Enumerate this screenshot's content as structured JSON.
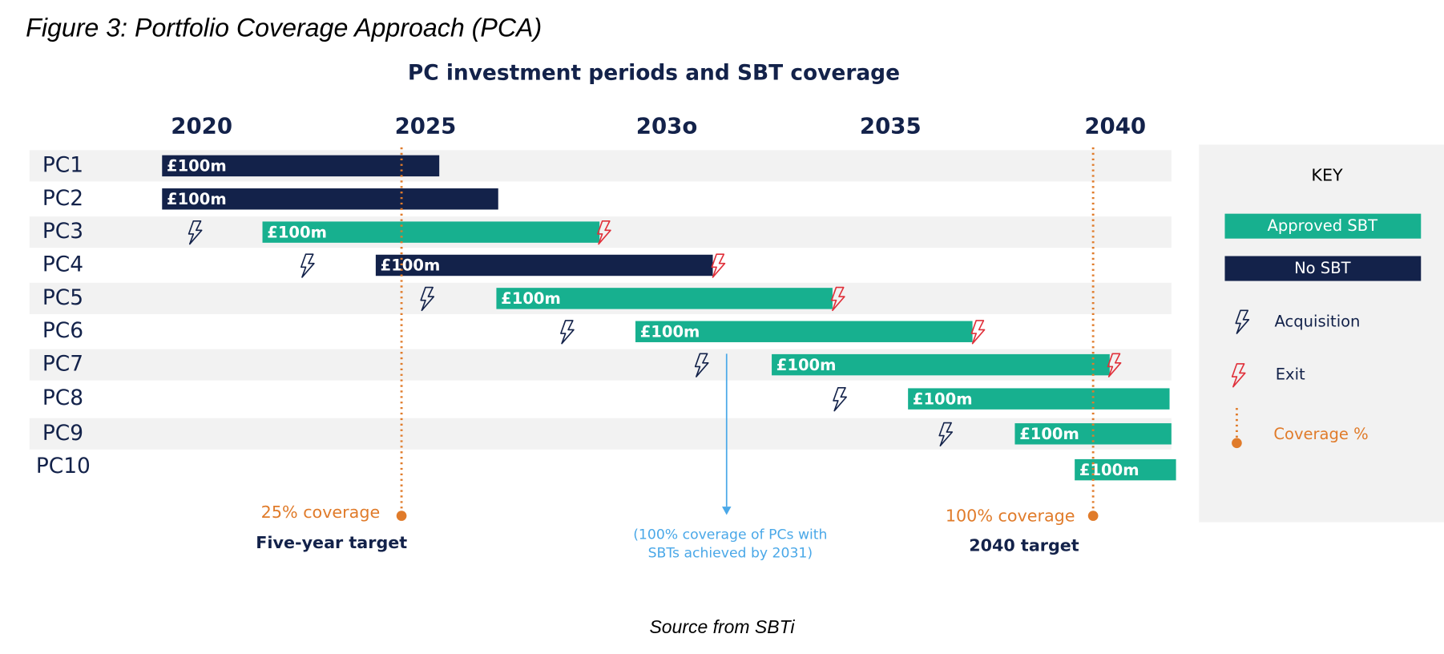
{
  "header": {
    "title": "Figure 3: Portfolio Coverage Approach (PCA)"
  },
  "diagram": {
    "title": "PC investment periods and SBT coverage",
    "years": [
      "2020",
      "2025",
      "203o",
      "2035",
      "2040"
    ],
    "rows": [
      {
        "label": "PC1",
        "bar_label": "£100m"
      },
      {
        "label": "PC2",
        "bar_label": "£100m"
      },
      {
        "label": "PC3",
        "bar_label": "£100m"
      },
      {
        "label": "PC4",
        "bar_label": "£100m"
      },
      {
        "label": "PC5",
        "bar_label": "£100m"
      },
      {
        "label": "PC6",
        "bar_label": "£100m"
      },
      {
        "label": "PC7",
        "bar_label": "£100m"
      },
      {
        "label": "PC8",
        "bar_label": "£100m"
      },
      {
        "label": "PC9",
        "bar_label": "£100m"
      },
      {
        "label": "PC10",
        "bar_label": "£100m"
      }
    ],
    "annotations": {
      "five_year_coverage": "25% coverage",
      "five_year_target": "Five-year target",
      "note_line1": "(100% coverage of PCs with",
      "note_line2": "SBTs achieved by 2031)",
      "final_coverage": "100% coverage",
      "final_target": "2040 target"
    },
    "key": {
      "title": "KEY",
      "approved": "Approved SBT",
      "no_sbt": "No SBT",
      "acquisition": "Acquisition",
      "exit": "Exit",
      "coverage": "Coverage %"
    }
  },
  "footer": {
    "source": "Source from SBTi"
  }
}
